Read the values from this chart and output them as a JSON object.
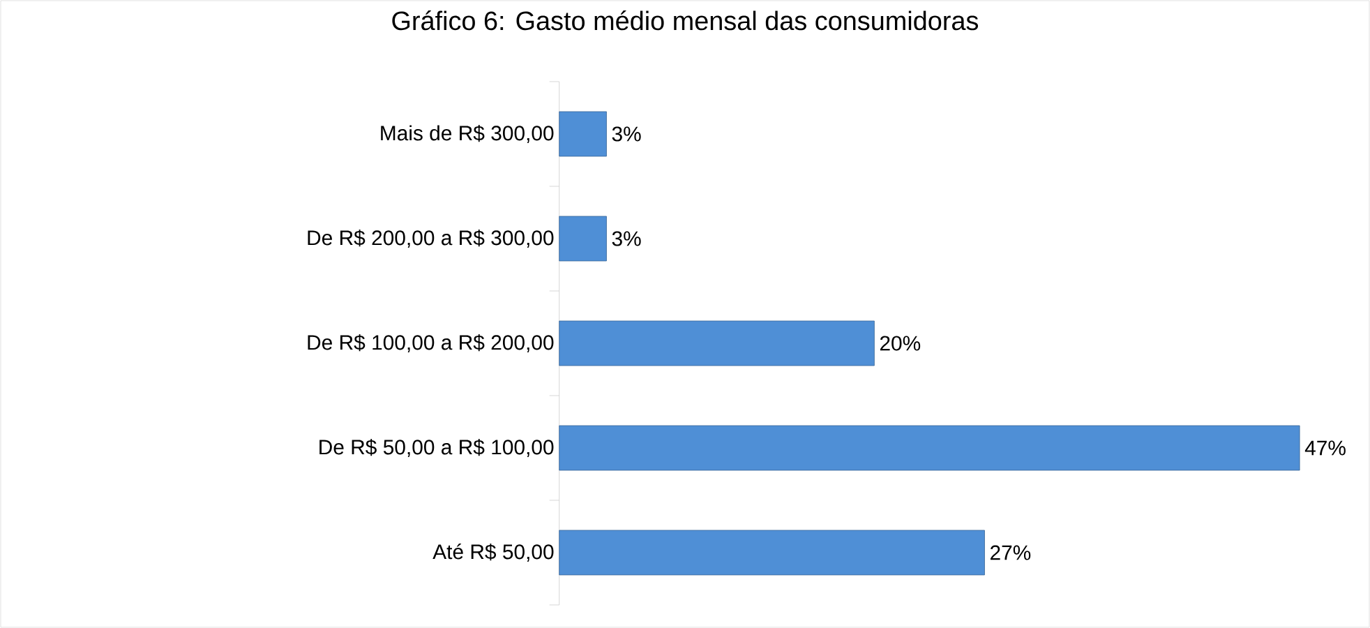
{
  "chart_data": {
    "type": "bar",
    "orientation": "horizontal",
    "title": "Gráfico 6: Gasto médio mensal das consumidoras",
    "categories": [
      "Mais de R$ 300,00",
      "De R$ 200,00 a R$ 300,00",
      "De R$ 100,00 a R$ 200,00",
      "De R$ 50,00 a R$ 100,00",
      "Até R$ 50,00"
    ],
    "values": [
      3,
      3,
      20,
      47,
      27
    ],
    "value_labels": [
      "3%",
      "3%",
      "20%",
      "47%",
      "27%"
    ],
    "color": "#4f8fd6"
  }
}
